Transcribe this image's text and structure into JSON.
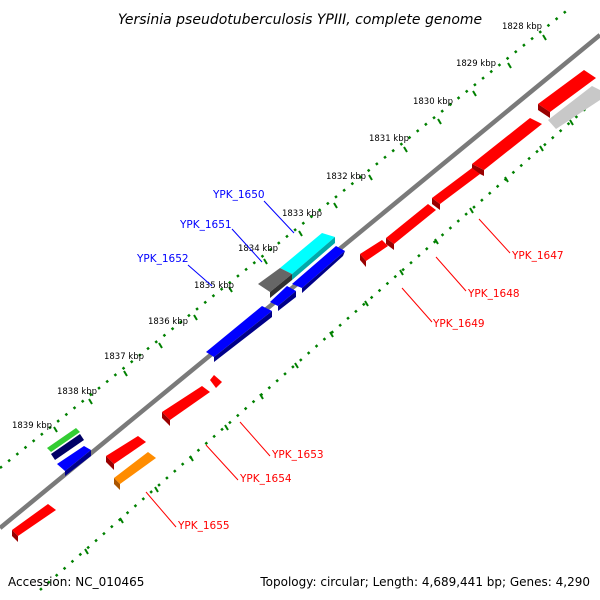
{
  "title": "Yersinia pseudotuberculosis YPIII, complete genome",
  "footer": {
    "accession": "Accession: NC_010465",
    "topology": "Topology: circular; Length: 4,689,441 bp; Genes: 4,290"
  },
  "colors": {
    "forward": "#ff0000",
    "reverse": "#0000ff",
    "backbone": "#777777",
    "ticks": "#008000"
  },
  "kbp_labels": [
    "1828 kbp",
    "1829 kbp",
    "1830 kbp",
    "1831 kbp",
    "1832 kbp",
    "1833 kbp",
    "1834 kbp",
    "1835 kbp",
    "1836 kbp",
    "1837 kbp",
    "1838 kbp",
    "1839 kbp"
  ],
  "labels_reverse": [
    {
      "name": "YPK_1650"
    },
    {
      "name": "YPK_1651"
    },
    {
      "name": "YPK_1652"
    }
  ],
  "labels_forward": [
    {
      "name": "YPK_1647"
    },
    {
      "name": "YPK_1648"
    },
    {
      "name": "YPK_1649"
    },
    {
      "name": "YPK_1653"
    },
    {
      "name": "YPK_1654"
    },
    {
      "name": "YPK_1655"
    }
  ]
}
